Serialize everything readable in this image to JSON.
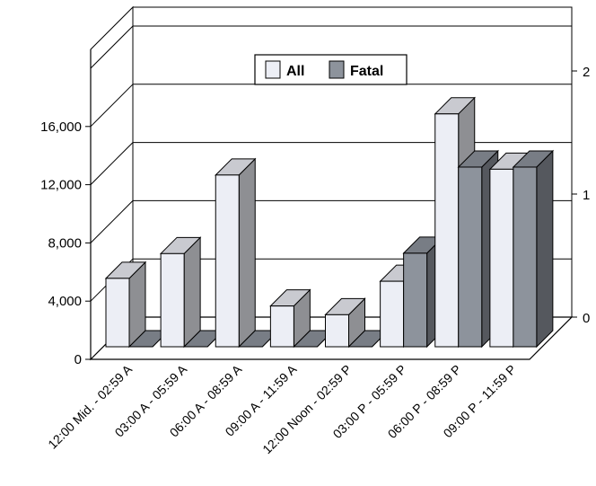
{
  "chart_data": {
    "type": "bar",
    "title": "",
    "xlabel": "",
    "ylabel": "",
    "categories": [
      "12:00 Mid. - 02:59 A",
      "03:00 A - 05:59 A",
      "06:00 A - 08:59 A",
      "09:00 A - 11:59 A",
      "12:00 Noon - 02:59 P",
      "03:00 P - 05:59 P",
      "06:00 P - 08:59 P",
      "09:00 P - 11:59 P"
    ],
    "series": [
      {
        "name": "All",
        "axis": "left",
        "values": [
          4700,
          6400,
          11800,
          2800,
          2200,
          4500,
          16000,
          12200
        ]
      },
      {
        "name": "Fatal",
        "axis": "right",
        "values": [
          0,
          0,
          0,
          0,
          0,
          0.76,
          1.46,
          1.46
        ]
      }
    ],
    "ylim": [
      0,
      16000
    ],
    "yticks": [
      "0",
      "4,000",
      "8,000",
      "12,000",
      "16,000"
    ],
    "y2lim": [
      0,
      2
    ],
    "y2ticks": [
      "0",
      "1",
      "2"
    ],
    "legend": {
      "position": "top-center",
      "labels": [
        "All",
        "Fatal"
      ]
    },
    "grid": true,
    "colors": {
      "all": "#eceef5",
      "fatal": "#8d939c",
      "wall": "#ffffff",
      "line": "#000000"
    }
  }
}
